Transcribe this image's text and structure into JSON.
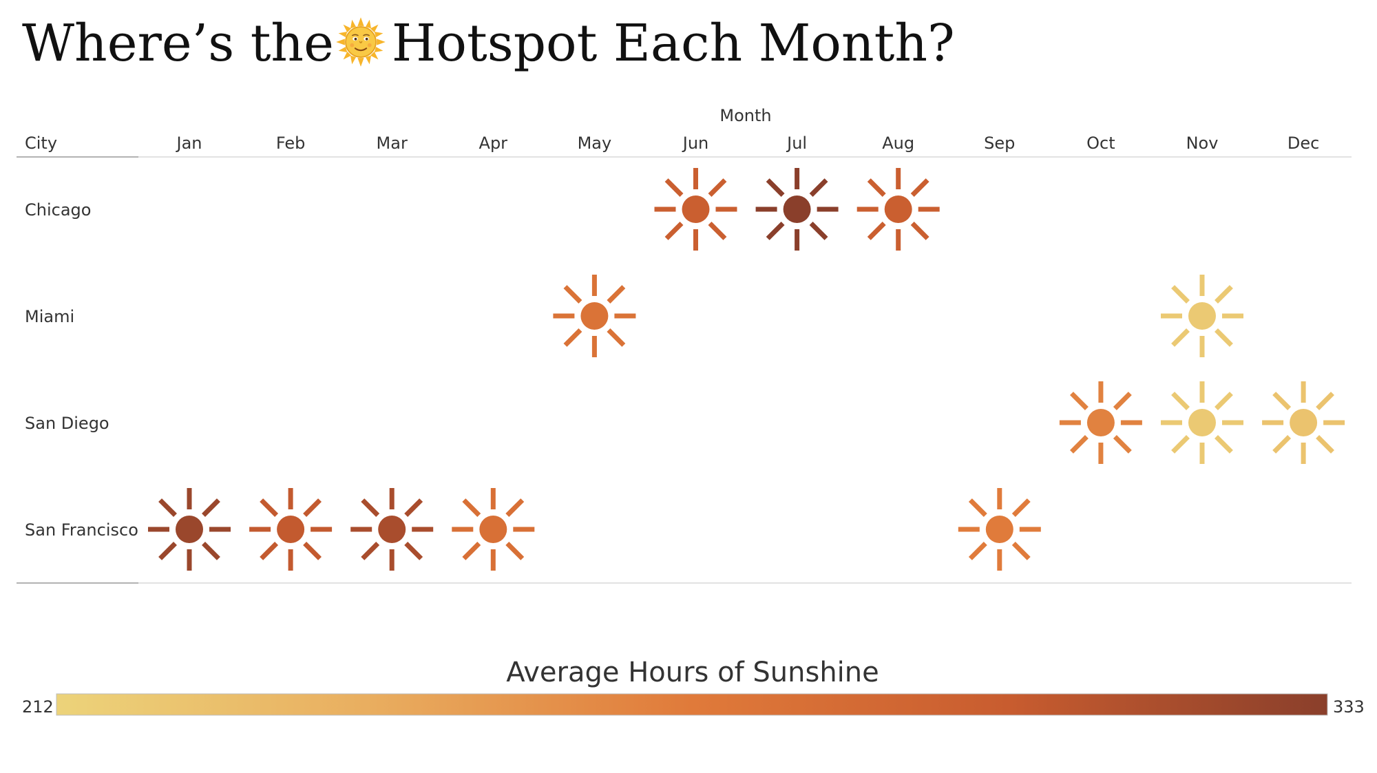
{
  "title_before": "Where’s the",
  "title_after": "Hotspot Each Month?",
  "title_icon": "sun-face-icon",
  "chart_data": {
    "type": "heatmap",
    "title": "Where’s the 🌞 Hotspot Each Month?",
    "column_header": "Month",
    "row_header": "City",
    "months": [
      "Jan",
      "Feb",
      "Mar",
      "Apr",
      "May",
      "Jun",
      "Jul",
      "Aug",
      "Sep",
      "Oct",
      "Nov",
      "Dec"
    ],
    "cities": [
      "Chicago",
      "Miami",
      "San Diego",
      "San Francisco"
    ],
    "mark_icon": "sun-icon",
    "cells": [
      {
        "city": "Chicago",
        "month": "Jun",
        "hours": 300
      },
      {
        "city": "Chicago",
        "month": "Jul",
        "hours": 333
      },
      {
        "city": "Chicago",
        "month": "Aug",
        "hours": 300
      },
      {
        "city": "Miami",
        "month": "May",
        "hours": 280
      },
      {
        "city": "Miami",
        "month": "Nov",
        "hours": 220
      },
      {
        "city": "San Diego",
        "month": "Oct",
        "hours": 268
      },
      {
        "city": "San Diego",
        "month": "Nov",
        "hours": 220
      },
      {
        "city": "San Diego",
        "month": "Dec",
        "hours": 225
      },
      {
        "city": "San Francisco",
        "month": "Jan",
        "hours": 325
      },
      {
        "city": "San Francisco",
        "month": "Feb",
        "hours": 305
      },
      {
        "city": "San Francisco",
        "month": "Mar",
        "hours": 318
      },
      {
        "city": "San Francisco",
        "month": "Apr",
        "hours": 283
      },
      {
        "city": "San Francisco",
        "month": "Sep",
        "hours": 272
      }
    ],
    "legend": {
      "title": "Average Hours of Sunshine",
      "min": 212,
      "max": 333,
      "min_label": "212",
      "max_label": "333",
      "colors": [
        "#ecd37a",
        "#e9ad5f",
        "#e07a3a",
        "#c85c2f",
        "#8a3f2b"
      ]
    }
  }
}
